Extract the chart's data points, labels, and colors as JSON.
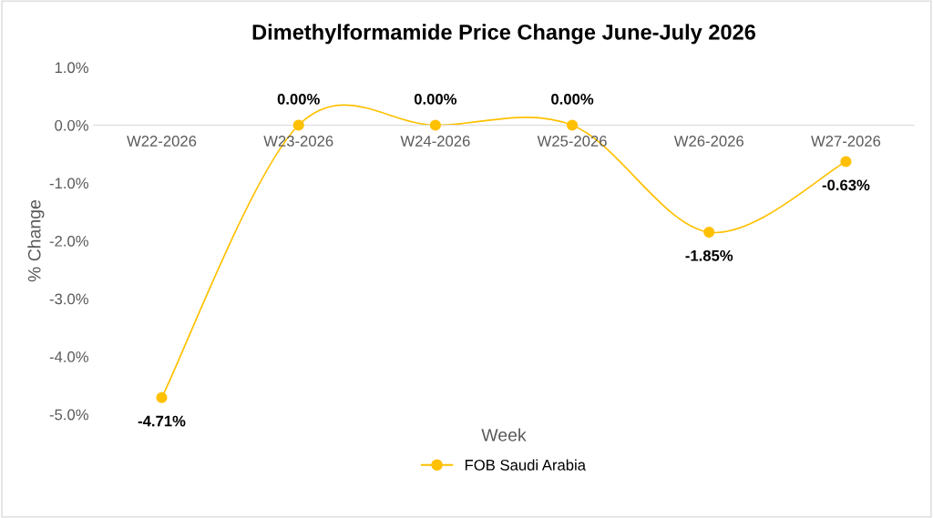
{
  "chart_data": {
    "type": "line",
    "title": "Dimethylformamide Price Change June-July 2026",
    "xlabel": "Week",
    "ylabel": "% Change",
    "categories": [
      "W22-2026",
      "W23-2026",
      "W24-2026",
      "W25-2026",
      "W26-2026",
      "W27-2026"
    ],
    "series": [
      {
        "name": "FOB Saudi Arabia",
        "color": "#ffc000",
        "values": [
          -4.71,
          0.0,
          0.0,
          0.0,
          -1.85,
          -0.63
        ],
        "value_labels": [
          "-4.71%",
          "0.00%",
          "0.00%",
          "0.00%",
          "-1.85%",
          "-0.63%"
        ]
      }
    ],
    "ylim": [
      -5,
      1
    ],
    "yticks": [
      {
        "value": 1,
        "label": "1.0%"
      },
      {
        "value": 0,
        "label": "0.0%"
      },
      {
        "value": -1,
        "label": "-1.0%"
      },
      {
        "value": -2,
        "label": "-2.0%"
      },
      {
        "value": -3,
        "label": "-3.0%"
      },
      {
        "value": -4,
        "label": "-4.0%"
      },
      {
        "value": -5,
        "label": "-5.0%"
      }
    ],
    "grid": false,
    "legend": "bottom",
    "marker": "circle",
    "line_style": "solid"
  }
}
